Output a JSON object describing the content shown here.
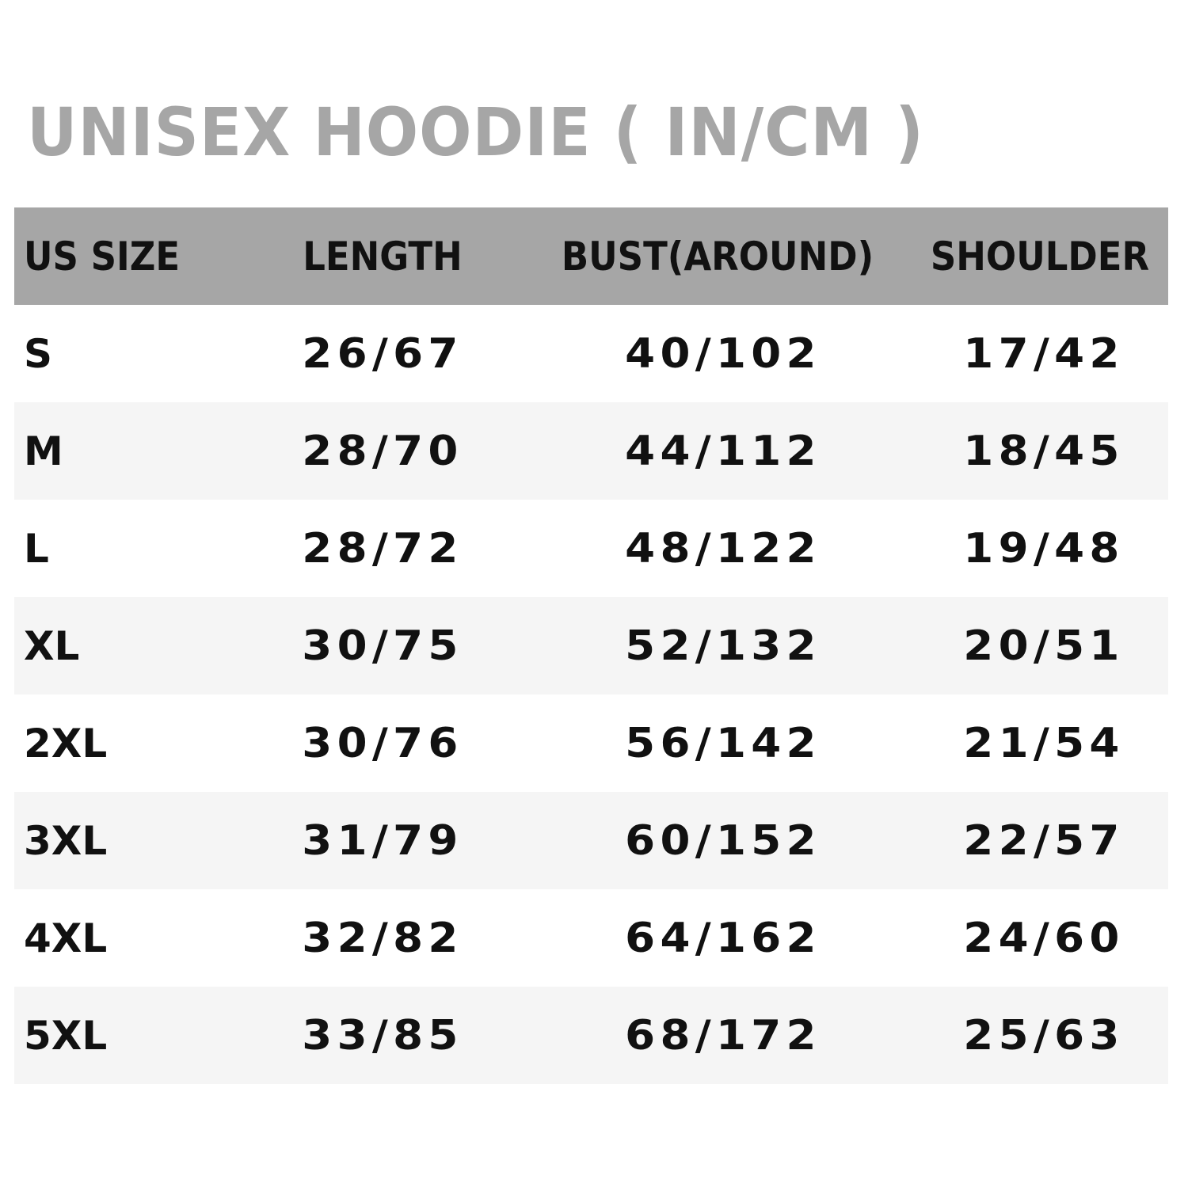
{
  "title": "UNISEX HOODIE ( IN/CM )",
  "colors": {
    "header_bg": "#a6a6a6",
    "title": "#a6a6a6",
    "alt_row": "#f5f5f5",
    "text": "#111111"
  },
  "table": {
    "headers": [
      "US SIZE",
      "LENGTH",
      "BUST(AROUND)",
      "SHOULDER"
    ],
    "rows": [
      [
        "S",
        "26/67",
        "40/102",
        "17/42"
      ],
      [
        "M",
        "28/70",
        "44/112",
        "18/45"
      ],
      [
        "L",
        "28/72",
        "48/122",
        "19/48"
      ],
      [
        "XL",
        "30/75",
        "52/132",
        "20/51"
      ],
      [
        "2XL",
        "30/76",
        "56/142",
        "21/54"
      ],
      [
        "3XL",
        "31/79",
        "60/152",
        "22/57"
      ],
      [
        "4XL",
        "32/82",
        "64/162",
        "24/60"
      ],
      [
        "5XL",
        "33/85",
        "68/172",
        "25/63"
      ]
    ]
  }
}
